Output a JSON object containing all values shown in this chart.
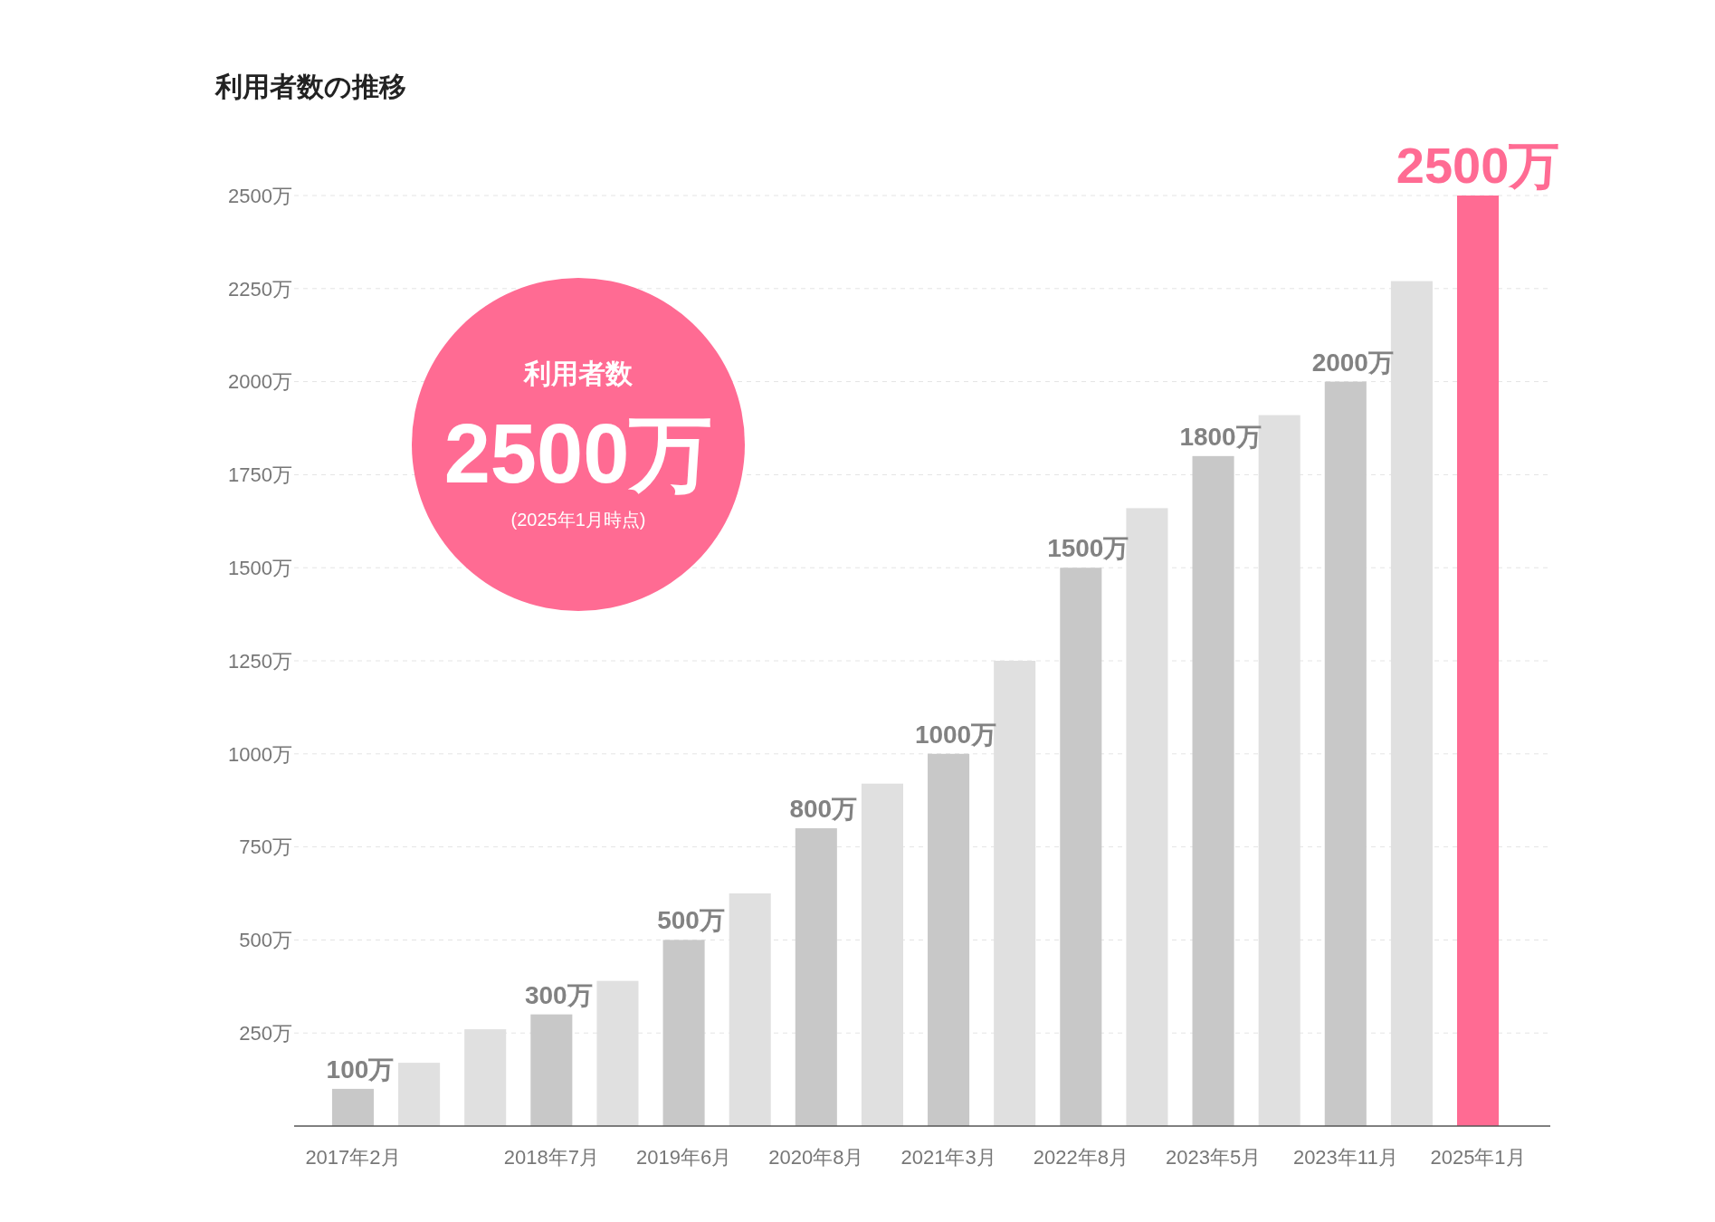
{
  "chart_data": {
    "type": "bar",
    "title": "利用者数の推移",
    "categories": [
      "2017年2月",
      null,
      null,
      "2018年7月",
      null,
      "2019年6月",
      null,
      "2020年8月",
      null,
      "2021年3月",
      null,
      "2022年8月",
      null,
      "2023年5月",
      null,
      "2023年11月",
      null,
      "2025年1月"
    ],
    "values": [
      100,
      170,
      260,
      300,
      390,
      500,
      625,
      800,
      920,
      1000,
      1250,
      1500,
      1660,
      1800,
      1910,
      2000,
      2270,
      2500
    ],
    "colors": [
      "#c8c8c8",
      "#e0e0e0",
      "#e0e0e0",
      "#c8c8c8",
      "#e0e0e0",
      "#c8c8c8",
      "#e0e0e0",
      "#c8c8c8",
      "#e0e0e0",
      "#c8c8c8",
      "#e0e0e0",
      "#c8c8c8",
      "#e0e0e0",
      "#c8c8c8",
      "#e0e0e0",
      "#c8c8c8",
      "#e0e0e0",
      "#ff6b93"
    ],
    "value_labels": [
      "100万",
      null,
      null,
      "300万",
      null,
      "500万",
      null,
      "800万",
      null,
      "1000万",
      null,
      "1500万",
      null,
      "1800万",
      null,
      "2000万",
      null,
      "2500万"
    ],
    "ylim": [
      0,
      2500
    ],
    "yticks": [
      {
        "value": 250,
        "label": "250万"
      },
      {
        "value": 500,
        "label": "500万"
      },
      {
        "value": 750,
        "label": "750万"
      },
      {
        "value": 1000,
        "label": "1000万"
      },
      {
        "value": 1250,
        "label": "1250万"
      },
      {
        "value": 1500,
        "label": "1500万"
      },
      {
        "value": 1750,
        "label": "1750万"
      },
      {
        "value": 2000,
        "label": "2000万"
      },
      {
        "value": 2250,
        "label": "2250万"
      },
      {
        "value": 2500,
        "label": "2500万"
      }
    ],
    "grid": "y",
    "annotations": [
      "利用者数",
      "2500万",
      "(2025年1月時点)"
    ]
  }
}
